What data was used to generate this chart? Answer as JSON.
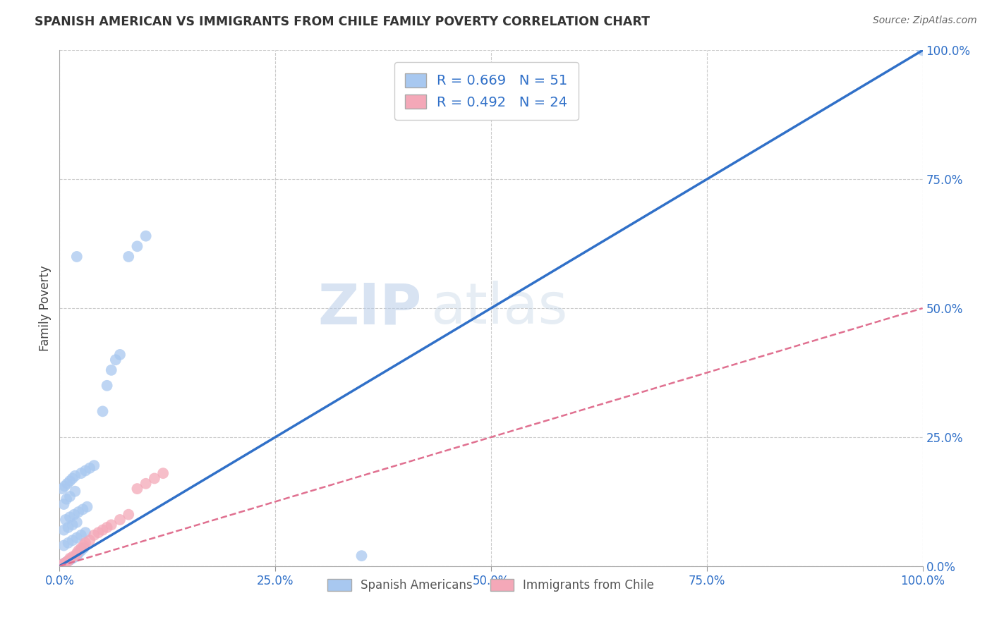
{
  "title": "SPANISH AMERICAN VS IMMIGRANTS FROM CHILE FAMILY POVERTY CORRELATION CHART",
  "source": "Source: ZipAtlas.com",
  "ylabel": "Family Poverty",
  "xlim": [
    0,
    1
  ],
  "ylim": [
    0,
    1
  ],
  "xtick_vals": [
    0,
    0.25,
    0.5,
    0.75,
    1.0
  ],
  "ytick_vals": [
    0,
    0.25,
    0.5,
    0.75,
    1.0
  ],
  "blue_R": 0.669,
  "blue_N": 51,
  "pink_R": 0.492,
  "pink_N": 24,
  "blue_color": "#a8c8f0",
  "pink_color": "#f4a8b8",
  "blue_line_color": "#3070c8",
  "pink_line_color": "#e07090",
  "watermark_zip": "ZIP",
  "watermark_atlas": "atlas",
  "background_color": "#ffffff",
  "grid_color": "#cccccc",
  "blue_scatter_x": [
    0.005,
    0.008,
    0.01,
    0.012,
    0.015,
    0.018,
    0.02,
    0.022,
    0.025,
    0.028,
    0.005,
    0.01,
    0.015,
    0.02,
    0.025,
    0.03,
    0.005,
    0.01,
    0.015,
    0.02,
    0.007,
    0.012,
    0.017,
    0.022,
    0.027,
    0.032,
    0.005,
    0.008,
    0.012,
    0.018,
    0.003,
    0.006,
    0.009,
    0.012,
    0.015,
    0.018,
    0.025,
    0.03,
    0.035,
    0.04,
    0.05,
    0.055,
    0.06,
    0.065,
    0.07,
    0.08,
    0.09,
    0.1,
    0.35,
    0.02,
    1.0
  ],
  "blue_scatter_y": [
    0.005,
    0.008,
    0.01,
    0.012,
    0.015,
    0.018,
    0.02,
    0.025,
    0.03,
    0.035,
    0.04,
    0.045,
    0.05,
    0.055,
    0.06,
    0.065,
    0.07,
    0.075,
    0.08,
    0.085,
    0.09,
    0.095,
    0.1,
    0.105,
    0.11,
    0.115,
    0.12,
    0.13,
    0.135,
    0.145,
    0.15,
    0.155,
    0.16,
    0.165,
    0.17,
    0.175,
    0.18,
    0.185,
    0.19,
    0.195,
    0.3,
    0.35,
    0.38,
    0.4,
    0.41,
    0.6,
    0.62,
    0.64,
    0.02,
    0.6,
    1.0
  ],
  "pink_scatter_x": [
    0.003,
    0.005,
    0.008,
    0.01,
    0.012,
    0.015,
    0.018,
    0.02,
    0.022,
    0.025,
    0.028,
    0.03,
    0.035,
    0.04,
    0.045,
    0.05,
    0.055,
    0.06,
    0.07,
    0.08,
    0.09,
    0.1,
    0.11,
    0.12
  ],
  "pink_scatter_y": [
    0.002,
    0.005,
    0.008,
    0.01,
    0.015,
    0.018,
    0.02,
    0.025,
    0.03,
    0.035,
    0.04,
    0.045,
    0.05,
    0.06,
    0.065,
    0.07,
    0.075,
    0.08,
    0.09,
    0.1,
    0.15,
    0.16,
    0.17,
    0.18
  ],
  "blue_line_x": [
    0.0,
    1.0
  ],
  "blue_line_y": [
    0.0,
    1.0
  ],
  "pink_line_x": [
    0.0,
    1.0
  ],
  "pink_line_y": [
    0.0,
    0.5
  ]
}
